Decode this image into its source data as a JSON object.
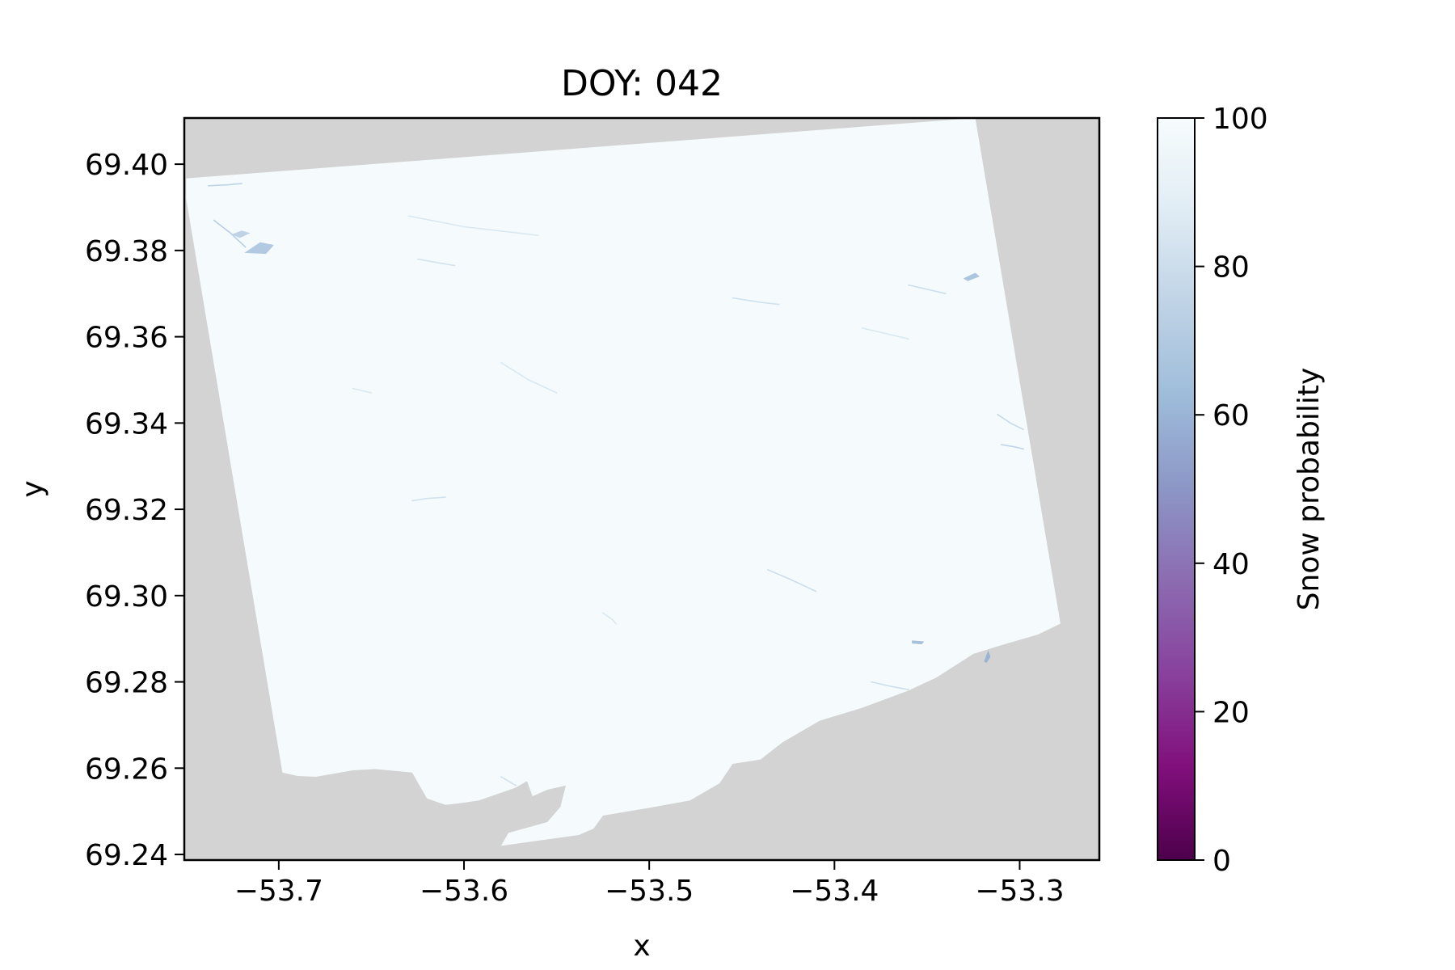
{
  "chart_data": {
    "type": "heatmap",
    "title": "DOY: 042",
    "xlabel": "x",
    "ylabel": "y",
    "xlim": [
      -53.751,
      -53.257
    ],
    "ylim": [
      69.2387,
      69.4107
    ],
    "x_ticks": [
      -53.7,
      -53.6,
      -53.5,
      -53.4,
      -53.3
    ],
    "x_tick_labels": [
      "−53.7",
      "−53.6",
      "−53.5",
      "−53.4",
      "−53.3"
    ],
    "y_ticks": [
      69.24,
      69.26,
      69.28,
      69.3,
      69.32,
      69.34,
      69.36,
      69.38,
      69.4
    ],
    "y_tick_labels": [
      "69.24",
      "69.26",
      "69.28",
      "69.30",
      "69.32",
      "69.34",
      "69.36",
      "69.38",
      "69.40"
    ],
    "grid": false,
    "background_color": "#d3d3d3",
    "colormap": "BuPu_r",
    "colorbar": {
      "label": "Snow probability",
      "range": [
        0,
        100
      ],
      "ticks": [
        0,
        20,
        40,
        60,
        80,
        100
      ],
      "tick_labels": [
        "0",
        "20",
        "40",
        "60",
        "80",
        "100"
      ],
      "stops": [
        {
          "value": 0,
          "color": "#4d004b"
        },
        {
          "value": 12.5,
          "color": "#810f7c"
        },
        {
          "value": 25,
          "color": "#88419d"
        },
        {
          "value": 37.5,
          "color": "#8c6bb1"
        },
        {
          "value": 50,
          "color": "#8c96c6"
        },
        {
          "value": 62.5,
          "color": "#9ebcda"
        },
        {
          "value": 75,
          "color": "#bfd3e6"
        },
        {
          "value": 87.5,
          "color": "#e0ecf4"
        },
        {
          "value": 100,
          "color": "#f7fcfd"
        }
      ]
    },
    "dominant_value": 99,
    "raster_footprint": [
      [
        -53.75,
        69.3967
      ],
      [
        -53.324,
        69.4107
      ],
      [
        -53.278,
        69.2935
      ],
      [
        -53.29,
        69.291
      ],
      [
        -53.31,
        69.2885
      ],
      [
        -53.325,
        69.2865
      ],
      [
        -53.345,
        69.281
      ],
      [
        -53.36,
        69.278
      ],
      [
        -53.385,
        69.274
      ],
      [
        -53.408,
        69.271
      ],
      [
        -53.428,
        69.266
      ],
      [
        -53.44,
        69.262
      ],
      [
        -53.455,
        69.261
      ],
      [
        -53.462,
        69.2565
      ],
      [
        -53.478,
        69.2525
      ],
      [
        -53.5,
        69.2508
      ],
      [
        -53.525,
        69.249
      ],
      [
        -53.53,
        69.246
      ],
      [
        -53.538,
        69.2445
      ],
      [
        -53.58,
        69.242
      ],
      [
        -53.576,
        69.245
      ],
      [
        -53.555,
        69.2475
      ],
      [
        -53.548,
        69.251
      ],
      [
        -53.545,
        69.256
      ],
      [
        -53.555,
        69.255
      ],
      [
        -53.563,
        69.2535
      ],
      [
        -53.566,
        69.257
      ],
      [
        -53.572,
        69.2555
      ],
      [
        -53.592,
        69.2525
      ],
      [
        -53.6,
        69.252
      ],
      [
        -53.61,
        69.2515
      ],
      [
        -53.62,
        69.253
      ],
      [
        -53.628,
        69.259
      ],
      [
        -53.648,
        69.2598
      ],
      [
        -53.66,
        69.2595
      ],
      [
        -53.68,
        69.258
      ],
      [
        -53.69,
        69.2582
      ],
      [
        -53.698,
        69.259
      ],
      [
        -53.75,
        69.392
      ]
    ],
    "features": [
      {
        "type": "region",
        "value": 70,
        "points": [
          [
            -53.718,
            69.3795
          ],
          [
            -53.71,
            69.3818
          ],
          [
            -53.703,
            69.3812
          ],
          [
            -53.707,
            69.3793
          ]
        ]
      },
      {
        "type": "region",
        "value": 75,
        "points": [
          [
            -53.725,
            69.3837
          ],
          [
            -53.72,
            69.3845
          ],
          [
            -53.716,
            69.384
          ],
          [
            -53.721,
            69.383
          ]
        ]
      },
      {
        "type": "region",
        "value": 68,
        "points": [
          [
            -53.33,
            69.3735
          ],
          [
            -53.324,
            69.3747
          ],
          [
            -53.322,
            69.374
          ],
          [
            -53.328,
            69.373
          ]
        ]
      },
      {
        "type": "region",
        "value": 60,
        "points": [
          [
            -53.319,
            69.2848
          ],
          [
            -53.317,
            69.287
          ],
          [
            -53.316,
            69.2858
          ],
          [
            -53.318,
            69.2845
          ]
        ]
      },
      {
        "type": "region",
        "value": 65,
        "points": [
          [
            -53.358,
            69.2895
          ],
          [
            -53.352,
            69.2893
          ],
          [
            -53.353,
            69.2888
          ],
          [
            -53.358,
            69.289
          ]
        ]
      },
      {
        "type": "line",
        "value": 72,
        "points": [
          [
            -53.735,
            69.387
          ],
          [
            -53.726,
            69.384
          ],
          [
            -53.718,
            69.3808
          ]
        ]
      },
      {
        "type": "line",
        "value": 75,
        "points": [
          [
            -53.738,
            69.395
          ],
          [
            -53.728,
            69.3952
          ],
          [
            -53.72,
            69.3955
          ]
        ]
      },
      {
        "type": "line",
        "value": 78,
        "points": [
          [
            -53.312,
            69.342
          ],
          [
            -53.305,
            69.34
          ],
          [
            -53.298,
            69.3385
          ]
        ]
      },
      {
        "type": "line",
        "value": 75,
        "points": [
          [
            -53.31,
            69.335
          ],
          [
            -53.303,
            69.3345
          ],
          [
            -53.298,
            69.334
          ]
        ]
      },
      {
        "type": "line",
        "value": 80,
        "points": [
          [
            -53.436,
            69.306
          ],
          [
            -53.425,
            69.304
          ],
          [
            -53.41,
            69.301
          ]
        ]
      },
      {
        "type": "line",
        "value": 82,
        "points": [
          [
            -53.628,
            69.322
          ],
          [
            -53.62,
            69.3225
          ],
          [
            -53.61,
            69.3228
          ]
        ]
      },
      {
        "type": "line",
        "value": 85,
        "points": [
          [
            -53.58,
            69.354
          ],
          [
            -53.565,
            69.35
          ],
          [
            -53.55,
            69.347
          ]
        ]
      },
      {
        "type": "line",
        "value": 85,
        "points": [
          [
            -53.385,
            69.362
          ],
          [
            -53.37,
            69.3605
          ],
          [
            -53.36,
            69.3595
          ]
        ]
      },
      {
        "type": "line",
        "value": 80,
        "points": [
          [
            -53.36,
            69.372
          ],
          [
            -53.35,
            69.371
          ],
          [
            -53.34,
            69.37
          ]
        ]
      },
      {
        "type": "line",
        "value": 85,
        "points": [
          [
            -53.63,
            69.388
          ],
          [
            -53.6,
            69.3855
          ],
          [
            -53.56,
            69.3835
          ]
        ]
      },
      {
        "type": "line",
        "value": 82,
        "points": [
          [
            -53.455,
            69.369
          ],
          [
            -53.44,
            69.368
          ],
          [
            -53.43,
            69.3675
          ]
        ]
      },
      {
        "type": "line",
        "value": 80,
        "points": [
          [
            -53.38,
            69.28
          ],
          [
            -53.37,
            69.279
          ],
          [
            -53.36,
            69.2782
          ]
        ]
      },
      {
        "type": "line",
        "value": 82,
        "points": [
          [
            -53.625,
            69.378
          ],
          [
            -53.612,
            69.377
          ],
          [
            -53.605,
            69.3765
          ]
        ]
      },
      {
        "type": "line",
        "value": 85,
        "points": [
          [
            -53.525,
            69.296
          ],
          [
            -53.52,
            69.2945
          ],
          [
            -53.518,
            69.2935
          ]
        ]
      },
      {
        "type": "line",
        "value": 85,
        "points": [
          [
            -53.66,
            69.348
          ],
          [
            -53.65,
            69.347
          ]
        ]
      },
      {
        "type": "line",
        "value": 82,
        "points": [
          [
            -53.58,
            69.258
          ],
          [
            -53.572,
            69.256
          ]
        ]
      }
    ]
  }
}
